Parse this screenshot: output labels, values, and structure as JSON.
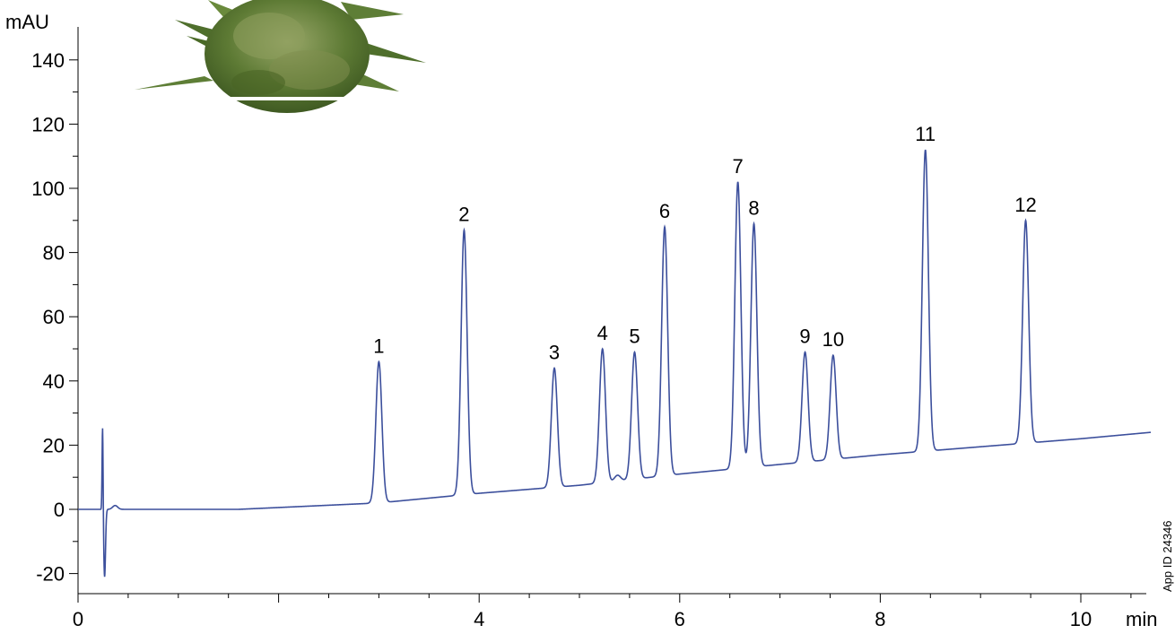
{
  "chart_data": {
    "type": "line",
    "title": "",
    "ylabel": "mAU",
    "xlabel": "min",
    "xlim": [
      0,
      10.7
    ],
    "ylim": [
      -25,
      148
    ],
    "yticks": [
      "-20",
      "0",
      "20",
      "40",
      "60",
      "80",
      "100",
      "120",
      "140"
    ],
    "xticks": [
      "0",
      "4",
      "6",
      "8",
      "10"
    ],
    "grid": false,
    "colors": {
      "trace": "#3c4f9c",
      "axis": "#000000"
    },
    "series": [
      {
        "name": "",
        "baseline": [
          [
            0.0,
            0.0
          ],
          [
            0.24,
            0.0
          ],
          [
            1.6,
            0.0
          ],
          [
            3.0,
            2.0
          ],
          [
            4.0,
            5.0
          ],
          [
            5.0,
            7.5
          ],
          [
            6.0,
            11.0
          ],
          [
            7.0,
            14.0
          ],
          [
            8.0,
            17.0
          ],
          [
            9.0,
            19.5
          ],
          [
            10.0,
            22.0
          ],
          [
            10.7,
            24.0
          ]
        ]
      }
    ],
    "injection_disturbance": [
      {
        "x": 0.245,
        "y": 27
      },
      {
        "x": 0.265,
        "y": -21
      },
      {
        "x": 0.37,
        "y": 1.2
      }
    ],
    "peaks": [
      {
        "label": "1",
        "x": 3.0,
        "y": 46
      },
      {
        "label": "2",
        "x": 3.85,
        "y": 87
      },
      {
        "label": "3",
        "x": 4.75,
        "y": 44
      },
      {
        "label": "4",
        "x": 5.23,
        "y": 50
      },
      {
        "label": "5",
        "x": 5.55,
        "y": 49
      },
      {
        "label": "6",
        "x": 5.85,
        "y": 88
      },
      {
        "label": "7",
        "x": 6.58,
        "y": 102
      },
      {
        "label": "8",
        "x": 6.74,
        "y": 89
      },
      {
        "label": "9",
        "x": 7.25,
        "y": 49
      },
      {
        "label": "10",
        "x": 7.53,
        "y": 48
      },
      {
        "label": "11",
        "x": 8.45,
        "y": 112
      },
      {
        "label": "12",
        "x": 9.45,
        "y": 90
      }
    ],
    "annotations": {
      "app_id": "App ID 24346"
    }
  }
}
